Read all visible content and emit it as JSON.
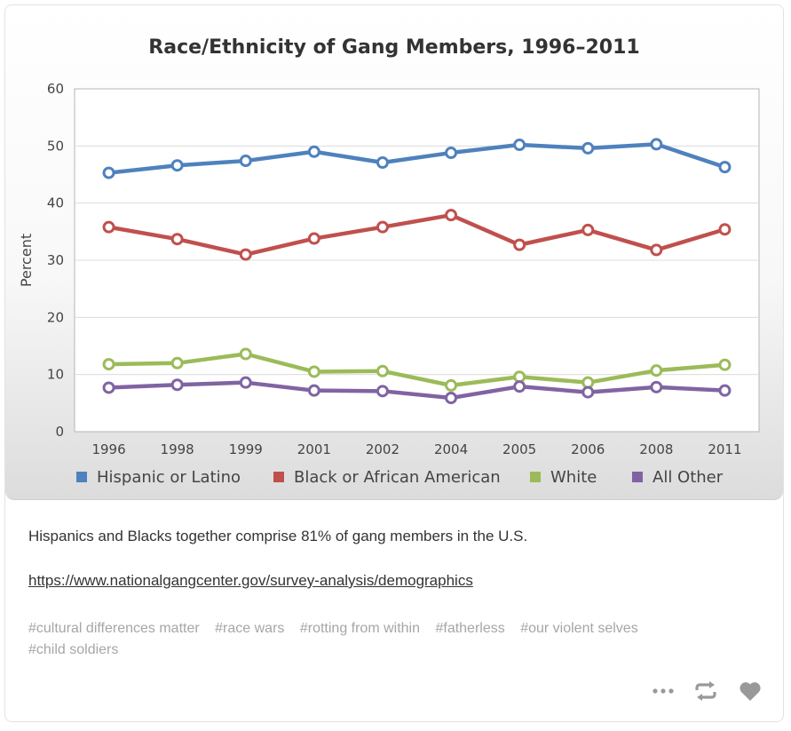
{
  "chart_data": {
    "type": "line",
    "title": "Race/Ethnicity of Gang Members, 1996–2011",
    "xlabel": "",
    "ylabel": "Percent",
    "ylim": [
      0,
      60
    ],
    "yticks": [
      "0",
      "10",
      "20",
      "30",
      "40",
      "50",
      "60"
    ],
    "categories": [
      "1996",
      "1998",
      "1999",
      "2001",
      "2002",
      "2004",
      "2005",
      "2006",
      "2008",
      "2011"
    ],
    "legend_position": "bottom",
    "grid": true,
    "series": [
      {
        "name": "Hispanic or Latino",
        "color": "#4f81bd",
        "values": [
          45.3,
          46.6,
          47.4,
          49.0,
          47.1,
          48.8,
          50.2,
          49.6,
          50.3,
          46.3
        ]
      },
      {
        "name": "Black or African American",
        "color": "#c0504d",
        "values": [
          35.8,
          33.7,
          31.0,
          33.8,
          35.8,
          37.9,
          32.7,
          35.3,
          31.8,
          35.4
        ]
      },
      {
        "name": "White",
        "color": "#9bbb59",
        "values": [
          11.8,
          12.0,
          13.6,
          10.5,
          10.6,
          8.1,
          9.6,
          8.6,
          10.7,
          11.7
        ]
      },
      {
        "name": "All Other",
        "color": "#8064a2",
        "values": [
          7.7,
          8.2,
          8.6,
          7.2,
          7.1,
          5.9,
          7.9,
          6.9,
          7.8,
          7.2
        ]
      }
    ]
  },
  "post": {
    "caption": "Hispanics and Blacks together comprise 81% of gang members in the U.S.",
    "link": "https://www.nationalgangcenter.gov/survey-analysis/demographics",
    "tags": [
      "#cultural differences matter",
      "#race wars",
      "#rotting from within",
      "#fatherless",
      "#our violent selves",
      "#child soldiers"
    ]
  },
  "actions": {
    "more_icon": "more-dots-icon",
    "reblog_icon": "reblog-icon",
    "like_icon": "heart-icon",
    "icon_color": "#999999"
  }
}
